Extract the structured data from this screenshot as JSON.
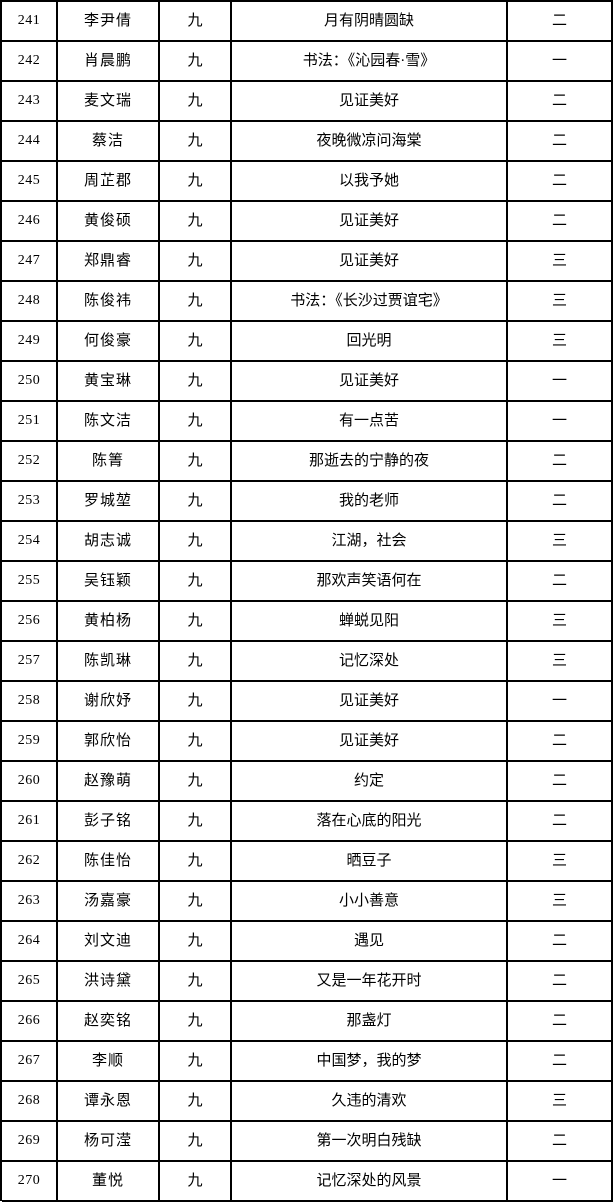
{
  "table": {
    "description": "student-award-list",
    "grade_label": "九",
    "rank_colors": {
      "text": "#000000",
      "border": "#000000",
      "background": "#ffffff"
    },
    "rows": [
      {
        "no": "241",
        "name": "李尹倩",
        "grade": "九",
        "title": "月有阴晴圆缺",
        "award": "二"
      },
      {
        "no": "242",
        "name": "肖晨鹏",
        "grade": "九",
        "title": "书法：《沁园春·雪》",
        "award": "一"
      },
      {
        "no": "243",
        "name": "麦文瑞",
        "grade": "九",
        "title": "见证美好",
        "award": "二"
      },
      {
        "no": "244",
        "name": "蔡洁",
        "grade": "九",
        "title": "夜晚微凉问海棠",
        "award": "二"
      },
      {
        "no": "245",
        "name": "周芷郡",
        "grade": "九",
        "title": "以我予她",
        "award": "二"
      },
      {
        "no": "246",
        "name": "黄俊硕",
        "grade": "九",
        "title": "见证美好",
        "award": "二"
      },
      {
        "no": "247",
        "name": "郑鼎睿",
        "grade": "九",
        "title": "见证美好",
        "award": "三"
      },
      {
        "no": "248",
        "name": "陈俊祎",
        "grade": "九",
        "title": "书法：《长沙过贾谊宅》",
        "award": "三"
      },
      {
        "no": "249",
        "name": "何俊豪",
        "grade": "九",
        "title": "回光明",
        "award": "三"
      },
      {
        "no": "250",
        "name": "黄宝琳",
        "grade": "九",
        "title": "见证美好",
        "award": "一"
      },
      {
        "no": "251",
        "name": "陈文洁",
        "grade": "九",
        "title": "有一点苦",
        "award": "一"
      },
      {
        "no": "252",
        "name": "陈箐",
        "grade": "九",
        "title": "那逝去的宁静的夜",
        "award": "二"
      },
      {
        "no": "253",
        "name": "罗城堃",
        "grade": "九",
        "title": "我的老师",
        "award": "二"
      },
      {
        "no": "254",
        "name": "胡志诚",
        "grade": "九",
        "title": "江湖，社会",
        "award": "三"
      },
      {
        "no": "255",
        "name": "吴钰颖",
        "grade": "九",
        "title": "那欢声笑语何在",
        "award": "二"
      },
      {
        "no": "256",
        "name": "黄柏杨",
        "grade": "九",
        "title": "蝉蜕见阳",
        "award": "三"
      },
      {
        "no": "257",
        "name": "陈凯琳",
        "grade": "九",
        "title": "记忆深处",
        "award": "三"
      },
      {
        "no": "258",
        "name": "谢欣妤",
        "grade": "九",
        "title": "见证美好",
        "award": "一"
      },
      {
        "no": "259",
        "name": "郭欣怡",
        "grade": "九",
        "title": "见证美好",
        "award": "二"
      },
      {
        "no": "260",
        "name": "赵豫萌",
        "grade": "九",
        "title": "约定",
        "award": "二"
      },
      {
        "no": "261",
        "name": "彭子铭",
        "grade": "九",
        "title": "落在心底的阳光",
        "award": "二"
      },
      {
        "no": "262",
        "name": "陈佳怡",
        "grade": "九",
        "title": "晒豆子",
        "award": "三"
      },
      {
        "no": "263",
        "name": "汤嘉豪",
        "grade": "九",
        "title": "小小善意",
        "award": "三"
      },
      {
        "no": "264",
        "name": "刘文迪",
        "grade": "九",
        "title": "遇见",
        "award": "二"
      },
      {
        "no": "265",
        "name": "洪诗黛",
        "grade": "九",
        "title": "又是一年花开时",
        "award": "二"
      },
      {
        "no": "266",
        "name": "赵奕铭",
        "grade": "九",
        "title": "那盏灯",
        "award": "二"
      },
      {
        "no": "267",
        "name": "李顺",
        "grade": "九",
        "title": "中国梦，我的梦",
        "award": "二"
      },
      {
        "no": "268",
        "name": "谭永恩",
        "grade": "九",
        "title": "久违的清欢",
        "award": "三"
      },
      {
        "no": "269",
        "name": "杨可滢",
        "grade": "九",
        "title": "第一次明白残缺",
        "award": "二"
      },
      {
        "no": "270",
        "name": "董悦",
        "grade": "九",
        "title": "记忆深处的风景",
        "award": "一"
      }
    ]
  }
}
